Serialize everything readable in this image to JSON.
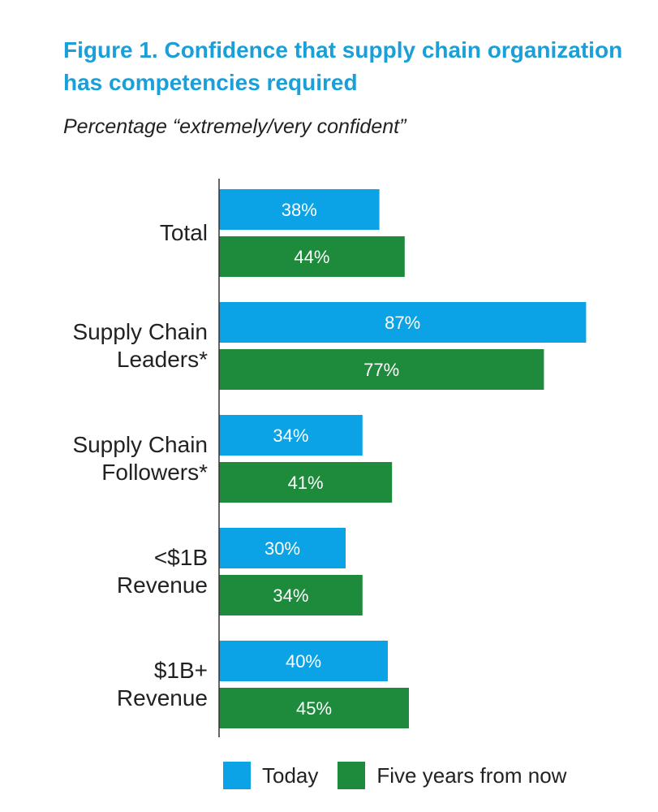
{
  "title": "Figure 1. Confidence that supply chain organization has competencies required",
  "subtitle": "Percentage “extremely/very confident”",
  "colors": {
    "today": "#0ba3e6",
    "five_years": "#1e8a3c",
    "axis": "#333333"
  },
  "legend": {
    "today": "Today",
    "five_years": "Five years from now"
  },
  "chart_data": {
    "type": "bar",
    "orientation": "horizontal",
    "title": "Figure 1. Confidence that supply chain organization has competencies required",
    "subtitle": "Percentage “extremely/very confident”",
    "categories": [
      [
        "Total"
      ],
      [
        "Supply Chain",
        "Leaders*"
      ],
      [
        "Supply Chain",
        "Followers*"
      ],
      [
        "<$1B",
        "Revenue"
      ],
      [
        "$1B+",
        "Revenue"
      ]
    ],
    "series": [
      {
        "name": "Today",
        "values": [
          38,
          87,
          34,
          30,
          40
        ],
        "labels": [
          "38%",
          "87%",
          "34%",
          "30%",
          "40%"
        ]
      },
      {
        "name": "Five years from now",
        "values": [
          44,
          77,
          41,
          34,
          45
        ],
        "labels": [
          "44%",
          "77%",
          "41%",
          "34%",
          "45%"
        ]
      }
    ],
    "xlim": [
      0,
      100
    ],
    "legend_position": "bottom",
    "grid": false
  }
}
